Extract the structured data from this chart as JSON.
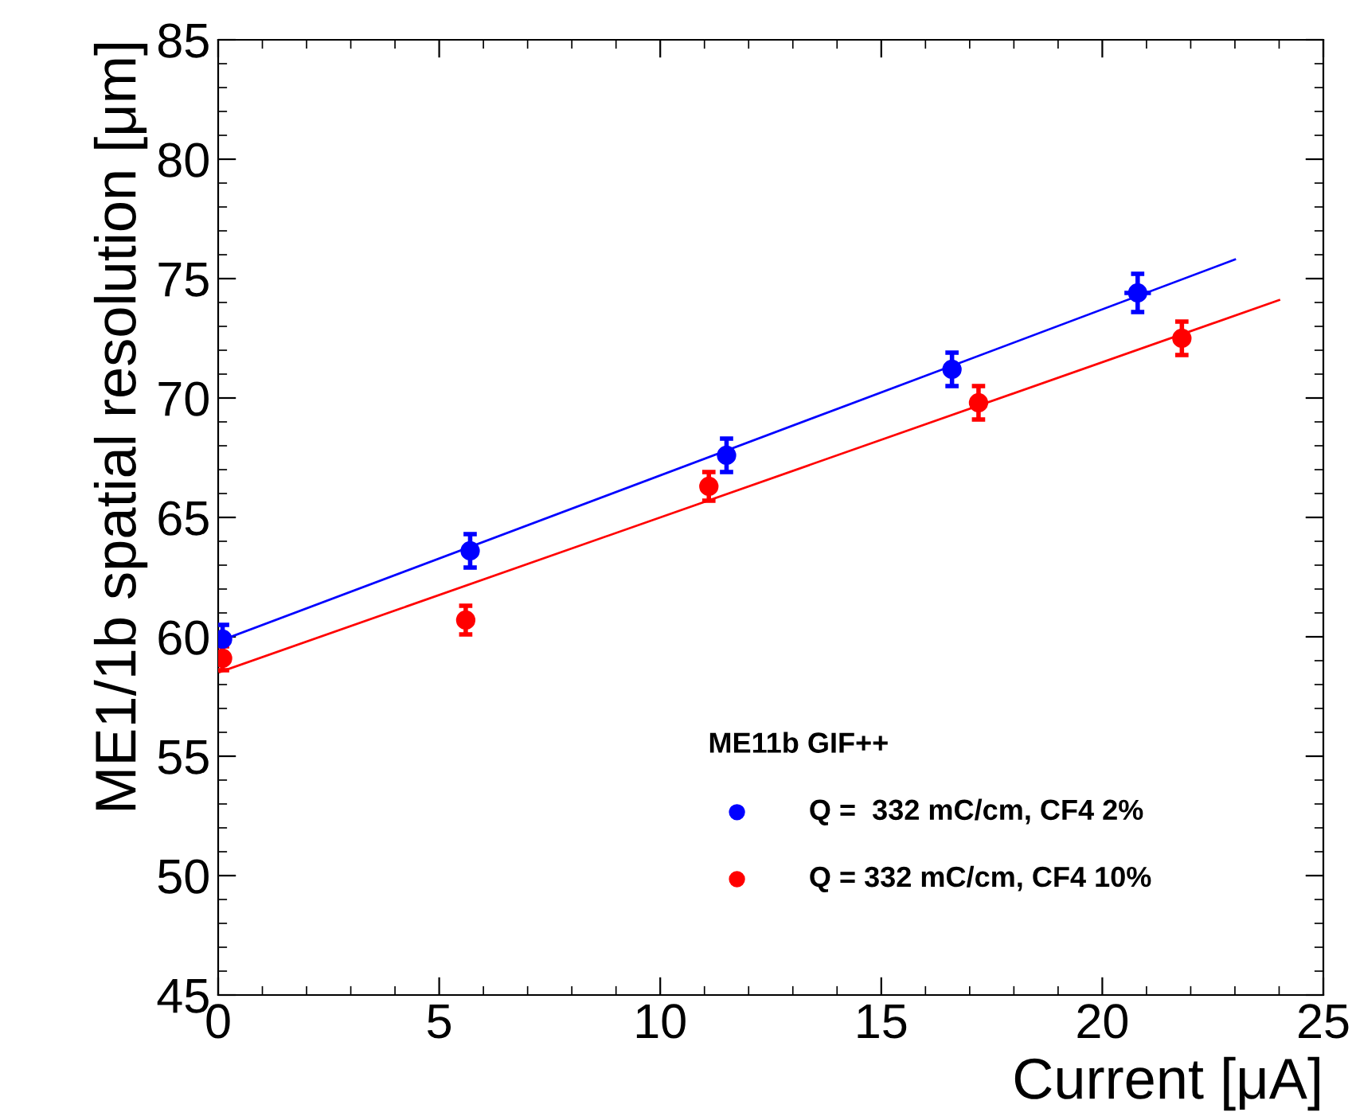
{
  "chart_data": {
    "type": "scatter",
    "xlabel": "Current [μA]",
    "ylabel": "ME1/1b spatial resolution [μm]",
    "legend_title": "ME11b GIF++",
    "legend": "bottom right",
    "marker": "circle",
    "grid": false,
    "xlim": [
      0,
      25
    ],
    "xticks": [
      0,
      5,
      10,
      15,
      20,
      25
    ],
    "ylim": [
      45,
      85
    ],
    "yticks": [
      45,
      50,
      55,
      60,
      65,
      70,
      75,
      80,
      85
    ],
    "series": [
      {
        "name": "Q =  332 mC/cm, CF4 2%",
        "color": "#0000ff",
        "x": [
          0.1,
          5.7,
          11.5,
          16.6,
          20.8
        ],
        "values": [
          59.9,
          63.6,
          67.6,
          71.2,
          74.4
        ],
        "errors": [
          0.6,
          0.7,
          0.7,
          0.7,
          0.8
        ],
        "xerrors": [
          null,
          null,
          null,
          null,
          0.3
        ]
      },
      {
        "name": "Q = 332 mC/cm, CF4 10%",
        "color": "#ff0000",
        "x": [
          0.1,
          5.6,
          11.1,
          17.2,
          21.8
        ],
        "values": [
          59.1,
          60.7,
          66.3,
          69.8,
          72.5
        ],
        "errors": [
          0.5,
          0.6,
          0.6,
          0.7,
          0.7
        ]
      },
      {
        "type": "line",
        "marker": "none",
        "color": "#0000ff",
        "x": [
          0,
          23
        ],
        "values": [
          59.8,
          75.8
        ]
      },
      {
        "type": "line",
        "marker": "none",
        "color": "#ff0000",
        "x": [
          0,
          24
        ],
        "values": [
          58.5,
          74.1
        ]
      }
    ]
  }
}
